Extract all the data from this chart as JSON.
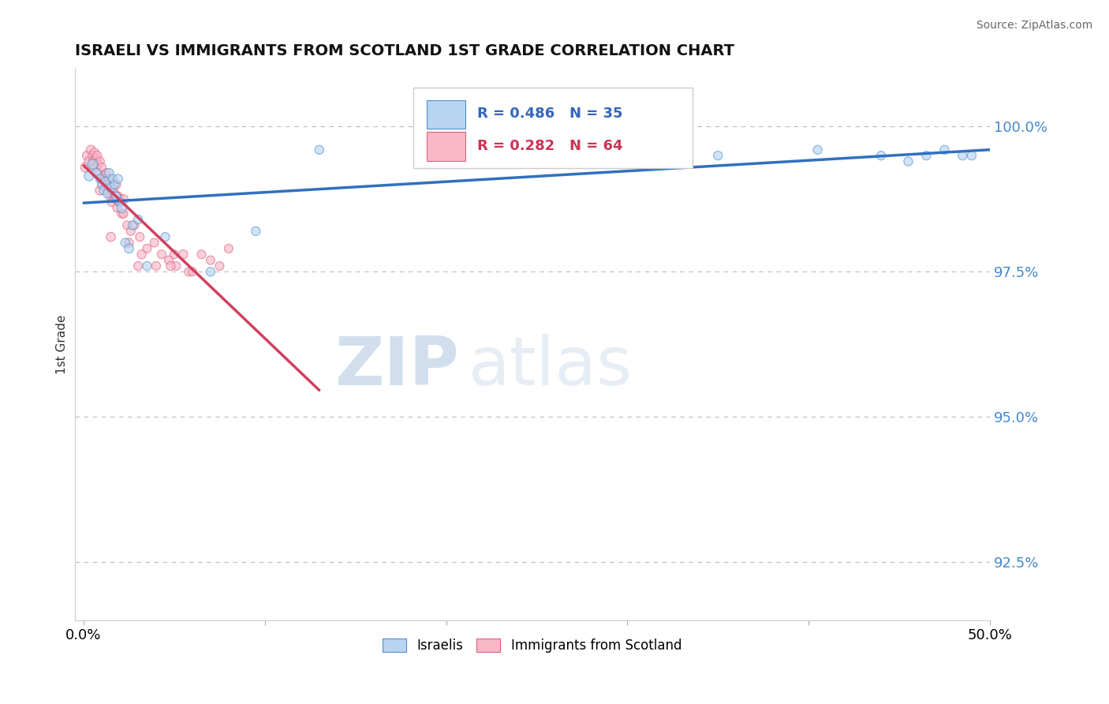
{
  "title": "ISRAELI VS IMMIGRANTS FROM SCOTLAND 1ST GRADE CORRELATION CHART",
  "source_text": "Source: ZipAtlas.com",
  "ylabel": "1st Grade",
  "xlim": [
    -0.5,
    50.0
  ],
  "ylim": [
    91.5,
    101.0
  ],
  "xtick_positions": [
    0.0,
    10.0,
    20.0,
    30.0,
    40.0,
    50.0
  ],
  "xticklabels": [
    "0.0%",
    "",
    "",
    "",
    "",
    "50.0%"
  ],
  "ytick_positions": [
    100.0,
    97.5,
    95.0,
    92.5
  ],
  "ytick_labels": [
    "100.0%",
    "97.5%",
    "95.0%",
    "92.5%"
  ],
  "blue_fill": "#b8d4f0",
  "blue_edge": "#5090d0",
  "pink_fill": "#f8b8c8",
  "pink_edge": "#e06080",
  "blue_line": "#3070c0",
  "pink_line": "#d04060",
  "r_blue": 0.486,
  "n_blue": 35,
  "r_pink": 0.282,
  "n_pink": 64,
  "watermark_zip": "ZIP",
  "watermark_atlas": "atlas",
  "blue_x": [
    0.3,
    0.5,
    0.7,
    0.9,
    1.0,
    1.1,
    1.2,
    1.3,
    1.4,
    1.5,
    1.6,
    1.7,
    1.8,
    1.9,
    2.0,
    2.1,
    2.3,
    2.5,
    2.7,
    3.0,
    3.5,
    4.5,
    7.0,
    9.5,
    13.0,
    18.5,
    30.0,
    35.0,
    40.5,
    44.0,
    45.5,
    46.5,
    47.5,
    48.5,
    49.0
  ],
  "blue_y": [
    99.15,
    99.35,
    99.2,
    99.1,
    99.0,
    98.9,
    99.05,
    98.85,
    99.2,
    98.95,
    99.1,
    99.0,
    98.8,
    99.1,
    98.7,
    98.6,
    98.0,
    97.9,
    98.3,
    98.4,
    97.6,
    98.1,
    97.5,
    98.2,
    99.6,
    99.5,
    99.4,
    99.5,
    99.6,
    99.5,
    99.4,
    99.5,
    99.6,
    99.5,
    99.5
  ],
  "blue_s": [
    80,
    80,
    70,
    65,
    65,
    60,
    65,
    60,
    70,
    65,
    65,
    60,
    60,
    65,
    60,
    80,
    65,
    70,
    65,
    65,
    65,
    65,
    65,
    65,
    65,
    65,
    65,
    65,
    65,
    65,
    65,
    65,
    65,
    65,
    65
  ],
  "pink_x": [
    0.1,
    0.2,
    0.3,
    0.4,
    0.5,
    0.55,
    0.6,
    0.65,
    0.7,
    0.75,
    0.8,
    0.85,
    0.9,
    0.95,
    1.0,
    1.05,
    1.1,
    1.15,
    1.2,
    1.25,
    1.3,
    1.35,
    1.4,
    1.45,
    1.5,
    1.55,
    1.6,
    1.65,
    1.7,
    1.75,
    1.8,
    1.85,
    1.9,
    1.95,
    2.0,
    2.1,
    2.2,
    2.4,
    2.6,
    2.8,
    3.1,
    3.5,
    3.9,
    4.3,
    4.7,
    5.1,
    5.8,
    6.5,
    7.5,
    8.0,
    3.0,
    4.0,
    5.0,
    6.0,
    7.0,
    1.5,
    2.5,
    3.2,
    4.8,
    5.5,
    0.9,
    1.3,
    1.8,
    2.2
  ],
  "pink_y": [
    99.3,
    99.5,
    99.4,
    99.6,
    99.5,
    99.4,
    99.55,
    99.3,
    99.45,
    99.5,
    99.35,
    99.2,
    99.4,
    99.1,
    99.3,
    99.0,
    99.15,
    98.95,
    99.1,
    99.2,
    98.9,
    99.0,
    99.1,
    98.8,
    99.0,
    98.7,
    98.9,
    98.8,
    98.85,
    98.75,
    99.0,
    98.6,
    98.8,
    98.7,
    98.75,
    98.5,
    98.5,
    98.3,
    98.2,
    98.3,
    98.1,
    97.9,
    98.0,
    97.8,
    97.7,
    97.6,
    97.5,
    97.8,
    97.6,
    97.9,
    97.6,
    97.6,
    97.8,
    97.5,
    97.7,
    98.1,
    98.0,
    97.8,
    97.6,
    97.8,
    98.9,
    99.0,
    98.8,
    98.75
  ],
  "pink_s": [
    80,
    75,
    75,
    70,
    70,
    68,
    68,
    65,
    65,
    65,
    65,
    65,
    65,
    62,
    62,
    62,
    62,
    62,
    62,
    62,
    62,
    62,
    62,
    62,
    62,
    62,
    62,
    62,
    62,
    62,
    62,
    62,
    62,
    62,
    62,
    62,
    62,
    62,
    62,
    62,
    62,
    62,
    62,
    62,
    62,
    62,
    62,
    62,
    62,
    62,
    62,
    62,
    62,
    62,
    62,
    70,
    65,
    65,
    65,
    65,
    70,
    70,
    70,
    70
  ]
}
